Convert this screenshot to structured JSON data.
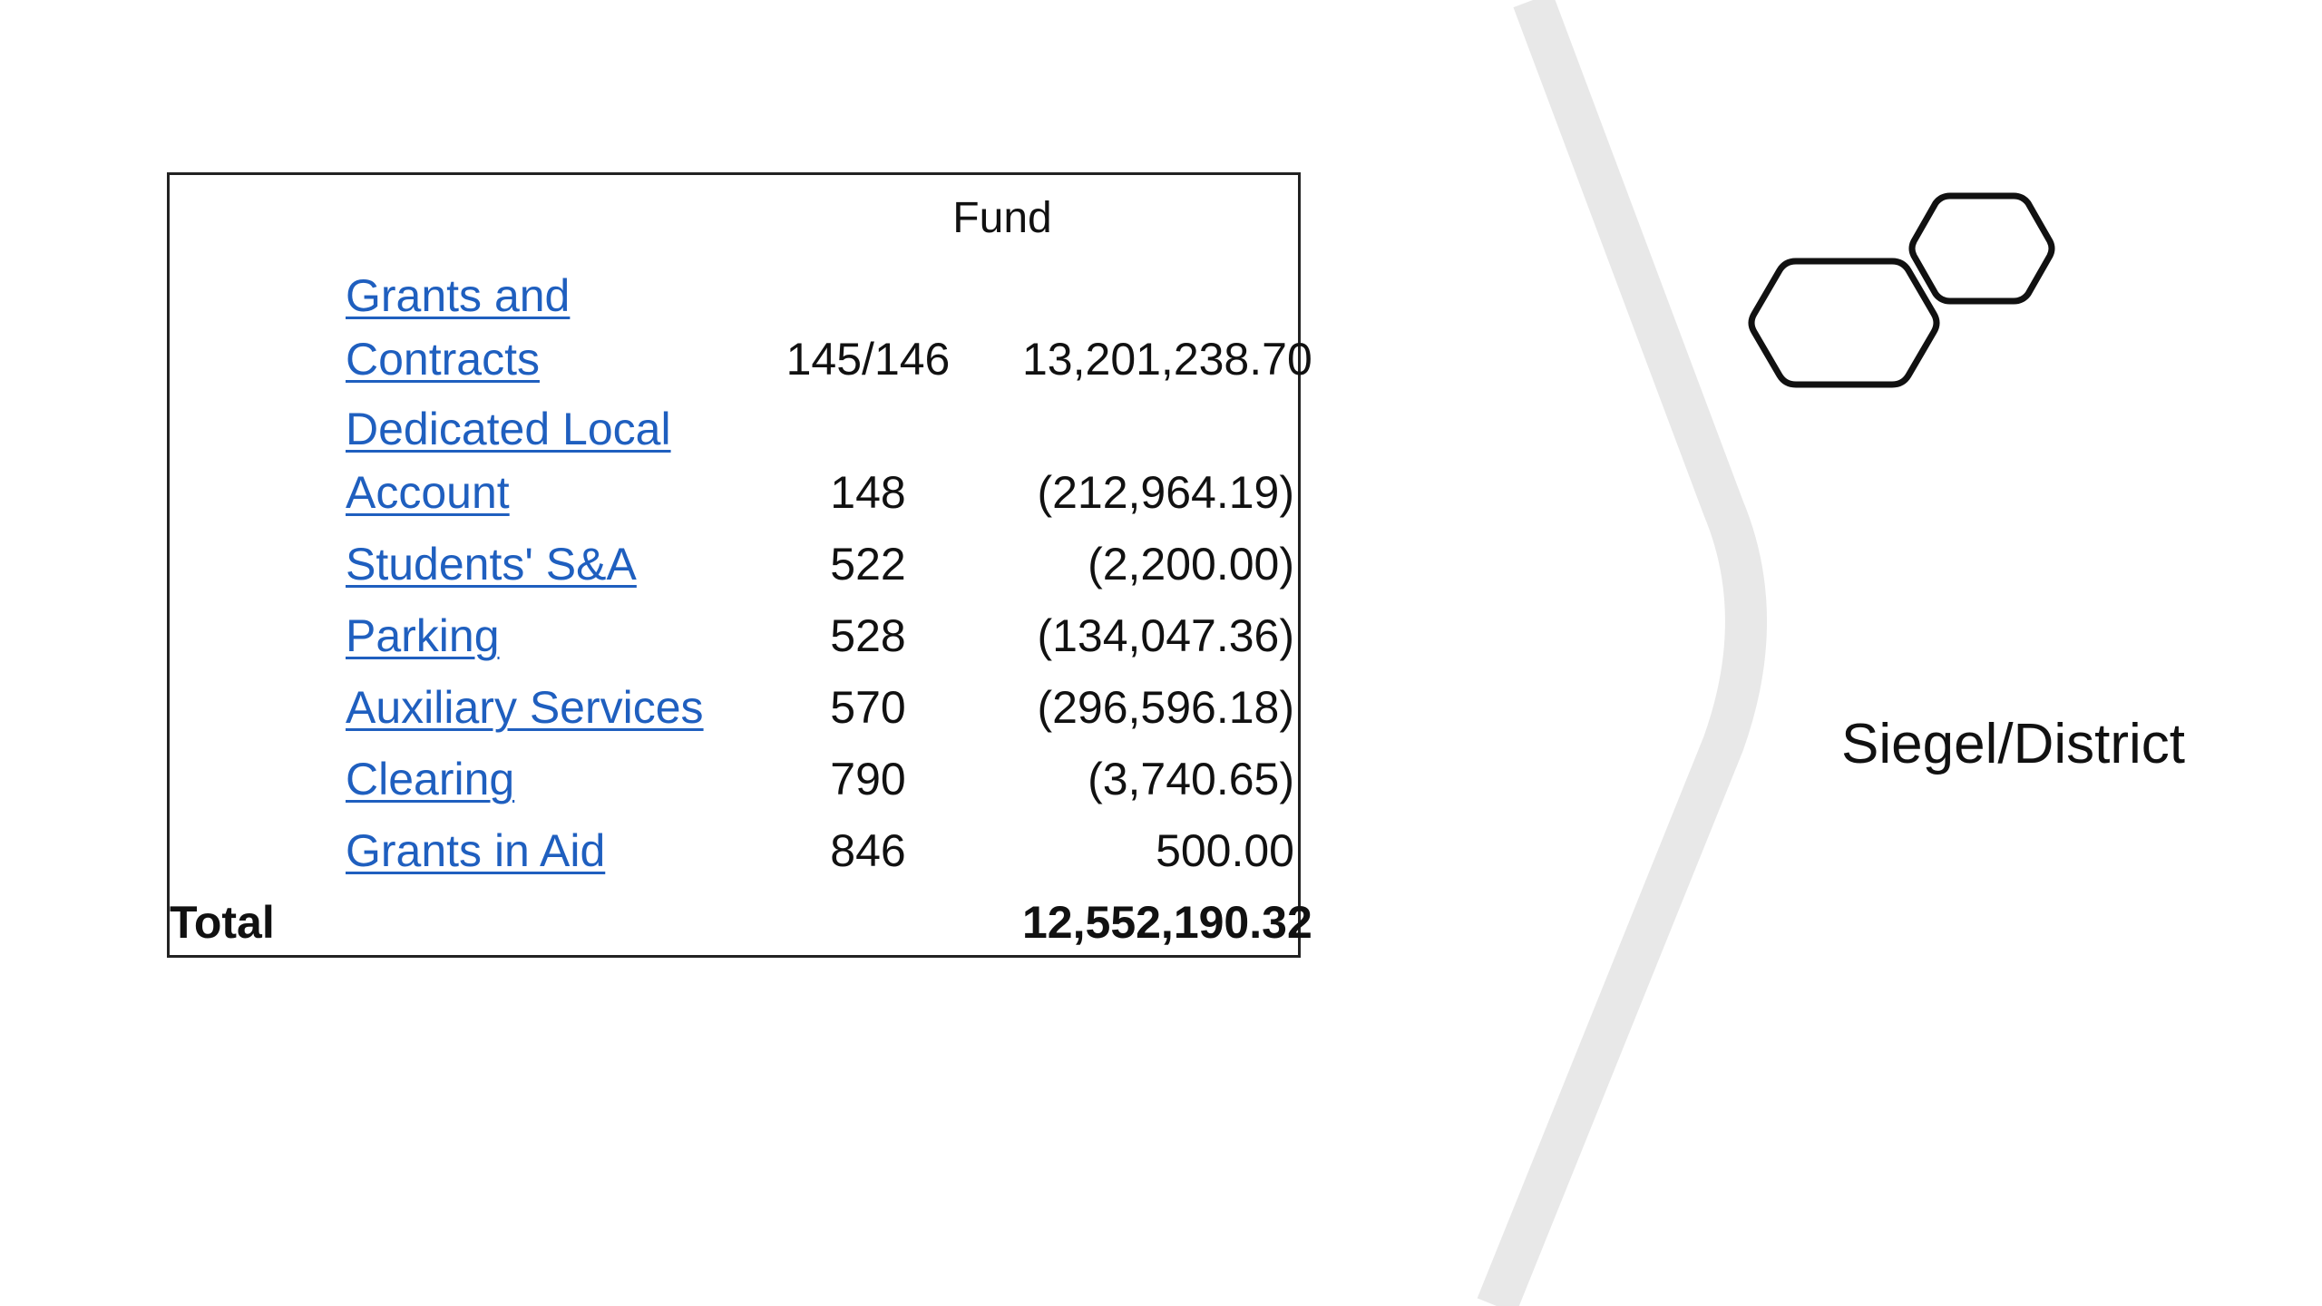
{
  "table": {
    "header": "Fund",
    "rows": [
      {
        "name_line1": "Grants and",
        "name_line2": "Contracts",
        "fund": "145/146",
        "amount": "13,201,238.70"
      },
      {
        "name_line1": "Dedicated Local",
        "name_line2": "Account",
        "fund": "148",
        "amount": "(212,964.19)"
      },
      {
        "name": "Students' S&A",
        "fund": "522",
        "amount": "(2,200.00)"
      },
      {
        "name": "Parking",
        "fund": "528",
        "amount": "(134,047.36)"
      },
      {
        "name": "Auxiliary Services",
        "fund": "570",
        "amount": "(296,596.18)"
      },
      {
        "name": "Clearing",
        "fund": "790",
        "amount": "(3,740.65)"
      },
      {
        "name": "Grants in Aid",
        "fund": "846",
        "amount": "500.00"
      }
    ],
    "total_label": "Total",
    "total_amount": "12,552,190.32"
  },
  "logo": {
    "icon": "hexagons-icon"
  },
  "footer_text": "Siegel/District",
  "colors": {
    "link": "#1f5fbf",
    "chevron": "#e8e8e8",
    "text": "#111111"
  }
}
